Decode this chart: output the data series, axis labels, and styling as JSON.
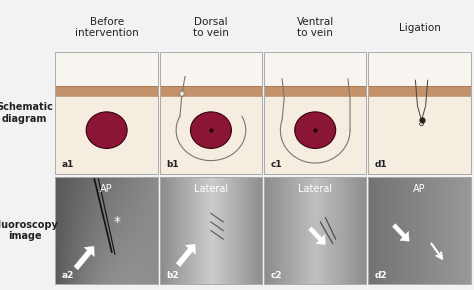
{
  "col_titles": [
    "Before\nintervention",
    "Dorsal\nto vein",
    "Ventral\nto vein",
    "Ligation"
  ],
  "row_labels": [
    "Schematic\ndiagram",
    "Fluoroscopy\nimage"
  ],
  "panel_labels_top": [
    "a1",
    "b1",
    "c1",
    "d1"
  ],
  "panel_labels_bot": [
    "a2",
    "b2",
    "c2",
    "d2"
  ],
  "fluoro_labels": [
    "AP",
    "Lateral",
    "Lateral",
    "AP"
  ],
  "skin_color": "#c4926a",
  "skin_border_color": "#9a6840",
  "subdermal_color": "#f5ede0",
  "above_skin_color": "#f8f4f0",
  "vein_color": "#8b1535",
  "vein_border_color": "#3a0010",
  "text_color_dark": "#222222",
  "panel_border_color": "#aaaaaa",
  "needle_color": "#777777",
  "title_fontsize": 7.5,
  "label_fontsize": 7,
  "panel_label_fontsize": 6.5
}
